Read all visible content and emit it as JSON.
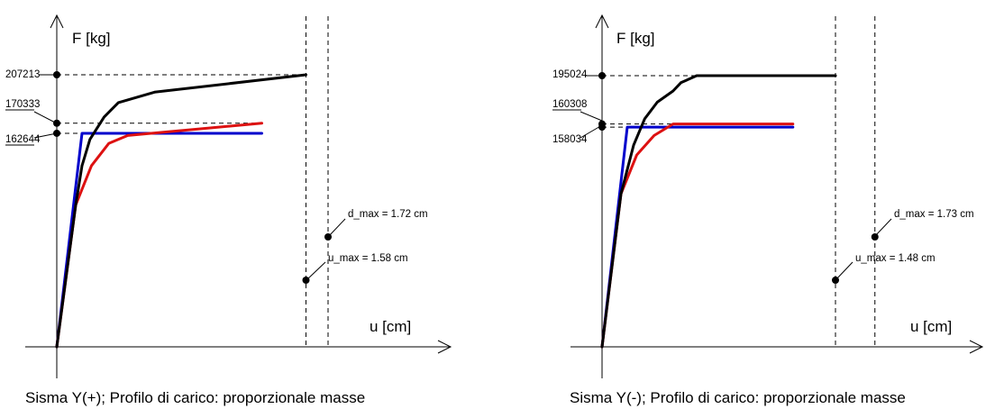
{
  "chart_data": [
    {
      "type": "line",
      "caption": "Sisma Y(+); Profilo di carico: proporzionale masse",
      "ylabel": "F [kg]",
      "xlabel": "u [cm]",
      "y_markers": [
        {
          "label": "207213",
          "value": 207213,
          "underline": false
        },
        {
          "label": "170333",
          "value": 170333,
          "underline": true
        },
        {
          "label": "162644",
          "value": 162644,
          "underline": true
        }
      ],
      "displacements": [
        {
          "label": "u_max = 1.58 cm",
          "value": 1.58
        },
        {
          "label": "d_max = 1.72 cm",
          "value": 1.72
        }
      ],
      "series": [
        {
          "color": "#0000cc",
          "points": [
            [
              0,
              0
            ],
            [
              0.16,
              162644
            ],
            [
              1.3,
              162644
            ]
          ]
        },
        {
          "color": "#dd1111",
          "points": [
            [
              0,
              0
            ],
            [
              0.12,
              108000
            ],
            [
              0.22,
              138000
            ],
            [
              0.33,
              155000
            ],
            [
              0.45,
              161000
            ],
            [
              1.3,
              170333
            ]
          ]
        },
        {
          "color": "#000000",
          "points": [
            [
              0,
              0
            ],
            [
              0.12,
              108000
            ],
            [
              0.16,
              138000
            ],
            [
              0.21,
              158000
            ],
            [
              0.3,
              175000
            ],
            [
              0.39,
              186000
            ],
            [
              0.62,
              194000
            ],
            [
              1.58,
              207213
            ]
          ]
        }
      ]
    },
    {
      "type": "line",
      "caption": "Sisma Y(-); Profilo di carico: proporzionale masse",
      "ylabel": "F [kg]",
      "xlabel": "u [cm]",
      "y_markers": [
        {
          "label": "195024",
          "value": 195024,
          "underline": false
        },
        {
          "label": "160308",
          "value": 160308,
          "underline": true
        },
        {
          "label": "158034",
          "value": 158034,
          "underline": false
        }
      ],
      "displacements": [
        {
          "label": "u_max = 1.48 cm",
          "value": 1.48
        },
        {
          "label": "d_max = 1.73 cm",
          "value": 1.73
        }
      ],
      "series": [
        {
          "color": "#0000cc",
          "points": [
            [
              0,
              0
            ],
            [
              0.16,
              158034
            ],
            [
              1.21,
              158034
            ]
          ]
        },
        {
          "color": "#dd1111",
          "points": [
            [
              0,
              0
            ],
            [
              0.12,
              110000
            ],
            [
              0.22,
              138000
            ],
            [
              0.33,
              152000
            ],
            [
              0.45,
              160308
            ],
            [
              1.21,
              160308
            ]
          ]
        },
        {
          "color": "#000000",
          "points": [
            [
              0,
              0
            ],
            [
              0.12,
              110000
            ],
            [
              0.2,
              145000
            ],
            [
              0.27,
              164000
            ],
            [
              0.35,
              176000
            ],
            [
              0.45,
              184000
            ],
            [
              0.5,
              190000
            ],
            [
              0.6,
              195024
            ],
            [
              1.48,
              195024
            ]
          ]
        }
      ]
    }
  ]
}
